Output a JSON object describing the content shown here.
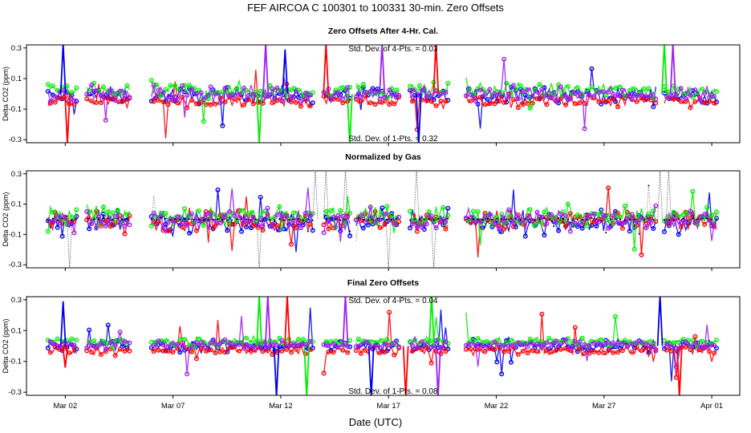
{
  "title": "FEF   AIRCOA C   100301 to 100331   30-min. Zero Offsets",
  "chart_data": {
    "type": "scatter",
    "xlabel": "Date (UTC)",
    "x_ticks": [
      "Mar 02",
      "Mar 07",
      "Mar 12",
      "Mar 17",
      "Mar 22",
      "Mar 27",
      "Apr 01"
    ],
    "x_tick_days": [
      2,
      7,
      12,
      17,
      22,
      27,
      32
    ],
    "xlim_days": [
      0.2,
      33.3
    ],
    "colors": {
      "series1": "#0000ee",
      "series2": "#ff0000",
      "series3": "#00ee00",
      "series4": "#a020f0",
      "normalized": "#000000"
    },
    "panels": [
      {
        "id": "cal",
        "title": "Zero Offsets After 4-Hr. Cal.",
        "ylabel": "Delta CO2 (ppm)",
        "ylim": [
          -0.32,
          0.32
        ],
        "y_ticks": [
          "-0.3",
          "-0.1",
          "0.1",
          "0.3"
        ],
        "y_tick_values": [
          -0.3,
          -0.1,
          0.1,
          0.3
        ],
        "annotations": [
          "Std. Dev. of 4-Pts. = 0.03",
          "Std. Dev. of 1-Pts. = 0.32"
        ],
        "segments": [
          [
            1.2,
            2.6
          ],
          [
            3.0,
            5.0
          ],
          [
            6.0,
            13.5
          ],
          [
            14.0,
            15.3
          ],
          [
            15.5,
            17.5
          ],
          [
            18.0,
            19.8
          ],
          [
            20.6,
            29.4
          ],
          [
            29.8,
            32.3
          ]
        ],
        "spikes": [
          [
            1.9,
            0.33
          ],
          [
            2.1,
            -0.33
          ],
          [
            11.0,
            -0.33
          ],
          [
            11.3,
            0.33
          ],
          [
            12.2,
            0.29
          ],
          [
            14.1,
            0.33
          ],
          [
            15.2,
            -0.33
          ],
          [
            16.7,
            0.33
          ],
          [
            18.4,
            -0.33
          ],
          [
            19.2,
            0.33
          ],
          [
            29.8,
            0.33
          ],
          [
            30.2,
            0.33
          ]
        ],
        "series": [
          {
            "key": "series1",
            "center": -0.01,
            "spread": 0.05
          },
          {
            "key": "series2",
            "center": -0.05,
            "spread": 0.04
          },
          {
            "key": "series3",
            "center": 0.02,
            "spread": 0.05
          },
          {
            "key": "series4",
            "center": 0.0,
            "spread": 0.05
          }
        ]
      },
      {
        "id": "norm",
        "title": "Normalized by Gas",
        "ylabel": "Delta CO2 (ppm)",
        "ylim": [
          -0.32,
          0.32
        ],
        "y_ticks": [
          "-0.3",
          "-0.1",
          "0.1",
          "0.3"
        ],
        "y_tick_values": [
          -0.3,
          -0.1,
          0.1,
          0.3
        ],
        "annotations": [],
        "segments": [
          [
            1.2,
            2.6
          ],
          [
            3.0,
            5.0
          ],
          [
            6.0,
            13.5
          ],
          [
            14.0,
            15.3
          ],
          [
            15.5,
            17.5
          ],
          [
            18.0,
            19.8
          ],
          [
            20.6,
            29.4
          ],
          [
            29.8,
            32.3
          ]
        ],
        "spikes": [
          [
            2.2,
            -0.33
          ],
          [
            11.0,
            -0.33
          ],
          [
            13.6,
            0.33
          ],
          [
            14.1,
            0.33
          ],
          [
            15.0,
            0.33
          ],
          [
            17.0,
            -0.33
          ],
          [
            18.3,
            0.33
          ],
          [
            19.1,
            -0.33
          ],
          [
            29.6,
            0.33
          ],
          [
            30.0,
            0.33
          ]
        ],
        "series": [
          {
            "key": "series1",
            "center": -0.02,
            "spread": 0.07
          },
          {
            "key": "series2",
            "center": -0.01,
            "spread": 0.07
          },
          {
            "key": "series3",
            "center": 0.02,
            "spread": 0.07
          },
          {
            "key": "series4",
            "center": 0.0,
            "spread": 0.07
          },
          {
            "key": "normalized",
            "center": 0.0,
            "spread": 0.01
          }
        ]
      },
      {
        "id": "final",
        "title": "Final Zero Offsets",
        "ylabel": "Delta CO2 (ppm)",
        "ylim": [
          -0.32,
          0.32
        ],
        "y_ticks": [
          "-0.3",
          "-0.1",
          "0.1",
          "0.3"
        ],
        "y_tick_values": [
          -0.3,
          -0.1,
          0.1,
          0.3
        ],
        "annotations": [
          "Std. Dev. of 4-Pts. = 0.04",
          "Std. Dev. of 1-Pts. = 0.08"
        ],
        "segments": [
          [
            1.2,
            2.6
          ],
          [
            3.0,
            5.0
          ],
          [
            6.0,
            13.5
          ],
          [
            14.0,
            15.3
          ],
          [
            15.5,
            17.5
          ],
          [
            18.0,
            19.8
          ],
          [
            20.6,
            29.4
          ],
          [
            29.8,
            32.3
          ]
        ],
        "spikes": [
          [
            1.9,
            0.29
          ],
          [
            2.0,
            -0.14
          ],
          [
            11.0,
            0.33
          ],
          [
            11.4,
            0.33
          ],
          [
            11.8,
            -0.33
          ],
          [
            12.3,
            0.33
          ],
          [
            13.2,
            -0.33
          ],
          [
            15.0,
            0.33
          ],
          [
            16.2,
            -0.33
          ],
          [
            17.8,
            -0.33
          ],
          [
            19.0,
            0.33
          ],
          [
            19.3,
            -0.33
          ],
          [
            29.6,
            0.33
          ],
          [
            30.5,
            -0.33
          ]
        ],
        "series": [
          {
            "key": "series1",
            "center": 0.0,
            "spread": 0.04
          },
          {
            "key": "series2",
            "center": -0.03,
            "spread": 0.03
          },
          {
            "key": "series3",
            "center": 0.03,
            "spread": 0.03
          },
          {
            "key": "series4",
            "center": 0.01,
            "spread": 0.03
          }
        ]
      }
    ]
  }
}
